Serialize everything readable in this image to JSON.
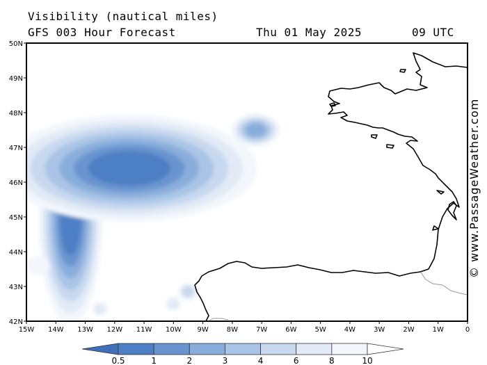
{
  "header": {
    "title": "Visibility (nautical miles)",
    "forecast": "GFS 003 Hour Forecast",
    "date": "Thu 01 May 2025",
    "time": "09 UTC"
  },
  "credit": "© www.PassageWeather.com",
  "axes": {
    "lon_labels": [
      "15W",
      "14W",
      "13W",
      "12W",
      "11W",
      "10W",
      "9W",
      "8W",
      "7W",
      "6W",
      "5W",
      "4W",
      "3W",
      "2W",
      "1W",
      "0"
    ],
    "lat_labels": [
      "50N",
      "49N",
      "48N",
      "47N",
      "46N",
      "45N",
      "44N",
      "43N",
      "42N"
    ],
    "lon_range": [
      -15,
      0
    ],
    "lat_range": [
      42,
      50
    ]
  },
  "legend": {
    "labels": [
      "0.5",
      "1",
      "2",
      "3",
      "4",
      "6",
      "8",
      "10"
    ],
    "colors": [
      "#3f6fb8",
      "#4d7fc4",
      "#6994cf",
      "#8aaedb",
      "#a9c4e6",
      "#c7d8ef",
      "#e1eaf6",
      "#f3f7fc",
      "#ffffff"
    ]
  },
  "colors": {
    "land_outline": "#000000",
    "border": "#999999",
    "frame": "#000000"
  },
  "fog_patches": [
    {
      "name": "fog-west-44n",
      "lon": -13.5,
      "lat": 44.85,
      "rx": 0.35,
      "ry": 0.95,
      "level": 1
    },
    {
      "name": "fog-north-46-5n",
      "lon": -11.5,
      "lat": 46.4,
      "rx": 1.4,
      "ry": 0.5,
      "level": 1
    },
    {
      "name": "fog-far-west-43-5n",
      "lon": -14.6,
      "lat": 43.6,
      "rx": 0.3,
      "ry": 0.2,
      "level": 7
    },
    {
      "name": "fog-biscay-47-5n",
      "lon": -7.2,
      "lat": 47.5,
      "rx": 0.35,
      "ry": 0.2,
      "level": 3
    },
    {
      "name": "fog-south-42-3n",
      "lon": -12.5,
      "lat": 42.35,
      "rx": 0.2,
      "ry": 0.15,
      "level": 6
    },
    {
      "name": "fog-south-42-3n-b",
      "lon": -10.0,
      "lat": 42.5,
      "rx": 0.2,
      "ry": 0.15,
      "level": 6
    },
    {
      "name": "fog-galicia-42-8n",
      "lon": -9.5,
      "lat": 42.85,
      "rx": 0.2,
      "ry": 0.15,
      "level": 5
    }
  ]
}
